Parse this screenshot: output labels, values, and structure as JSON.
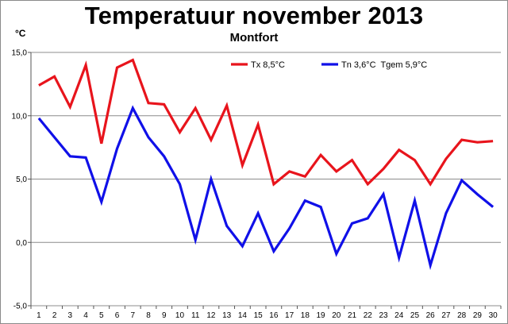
{
  "chart_data": {
    "type": "line",
    "title": "Temperatuur november 2013",
    "subtitle": "Montfort",
    "ylabel": "°C",
    "xlabel": "",
    "ylim": [
      -5,
      15
    ],
    "yticks": [
      -5,
      0,
      5,
      10,
      15
    ],
    "ytick_labels": [
      "-5,0",
      "0,0",
      "5,0",
      "10,0",
      "15,0"
    ],
    "grid": "horizontal",
    "legend_position": "top-right",
    "categories": [
      "1",
      "2",
      "3",
      "4",
      "5",
      "6",
      "7",
      "8",
      "9",
      "10",
      "11",
      "12",
      "13",
      "14",
      "15",
      "16",
      "17",
      "18",
      "19",
      "20",
      "21",
      "22",
      "23",
      "24",
      "25",
      "26",
      "27",
      "28",
      "29",
      "30"
    ],
    "series": [
      {
        "name": "Tx 8,5°C",
        "color": "#e8141c",
        "values": [
          12.4,
          13.1,
          10.7,
          14.0,
          7.8,
          13.8,
          14.4,
          11.0,
          10.9,
          8.7,
          10.6,
          8.1,
          10.8,
          6.1,
          9.3,
          4.6,
          5.6,
          5.2,
          6.9,
          5.6,
          6.5,
          4.6,
          5.8,
          7.3,
          6.5,
          4.6,
          6.6,
          8.1,
          7.9,
          8.0
        ]
      },
      {
        "name": "Tn 3,6°C  Tgem 5,9°C",
        "color": "#1010e8",
        "values": [
          9.8,
          8.3,
          6.8,
          6.7,
          3.2,
          7.4,
          10.6,
          8.3,
          6.8,
          4.6,
          0.2,
          5.0,
          1.3,
          -0.3,
          2.3,
          -0.7,
          1.1,
          3.3,
          2.8,
          -0.9,
          1.5,
          1.9,
          3.8,
          -1.2,
          3.3,
          -1.8,
          2.3,
          4.9,
          3.8,
          2.8
        ]
      }
    ]
  }
}
